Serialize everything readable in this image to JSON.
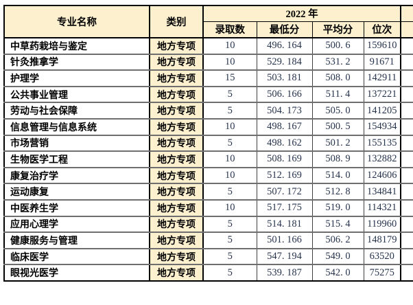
{
  "table": {
    "header": {
      "major_label": "专业名称",
      "category_label": "类别",
      "year_label": "2022 年",
      "sub_labels": [
        "录取数",
        "最低分",
        "平均分",
        "位次"
      ]
    },
    "rows": [
      {
        "major": "中草药栽培与鉴定",
        "category": "地方专项",
        "admit_count": "10",
        "min_score": "496. 164",
        "avg_score": "500. 6",
        "rank": "159610"
      },
      {
        "major": "针灸推拿学",
        "category": "地方专项",
        "admit_count": "10",
        "min_score": "529. 184",
        "avg_score": "531. 2",
        "rank": "91671"
      },
      {
        "major": "护理学",
        "category": "地方专项",
        "admit_count": "15",
        "min_score": "503. 181",
        "avg_score": "508. 0",
        "rank": "142911"
      },
      {
        "major": "公共事业管理",
        "category": "地方专项",
        "admit_count": "5",
        "min_score": "506. 166",
        "avg_score": "511. 4",
        "rank": "137221"
      },
      {
        "major": "劳动与社会保障",
        "category": "地方专项",
        "admit_count": "5",
        "min_score": "504. 173",
        "avg_score": "505. 0",
        "rank": "141205"
      },
      {
        "major": "信息管理与信息系统",
        "category": "地方专项",
        "admit_count": "10",
        "min_score": "498. 167",
        "avg_score": "500. 5",
        "rank": "154934"
      },
      {
        "major": "市场营销",
        "category": "地方专项",
        "admit_count": "5",
        "min_score": "498. 162",
        "avg_score": "501. 2",
        "rank": "155135"
      },
      {
        "major": "生物医学工程",
        "category": "地方专项",
        "admit_count": "10",
        "min_score": "508. 169",
        "avg_score": "508. 9",
        "rank": "132882"
      },
      {
        "major": "康复治疗学",
        "category": "地方专项",
        "admit_count": "10",
        "min_score": "512. 169",
        "avg_score": "514. 0",
        "rank": "124606"
      },
      {
        "major": "运动康复",
        "category": "地方专项",
        "admit_count": "5",
        "min_score": "507. 172",
        "avg_score": "512. 8",
        "rank": "134841"
      },
      {
        "major": "中医养生学",
        "category": "地方专项",
        "admit_count": "10",
        "min_score": "517. 175",
        "avg_score": "519. 0",
        "rank": "114321"
      },
      {
        "major": "应用心理学",
        "category": "地方专项",
        "admit_count": "5",
        "min_score": "514. 181",
        "avg_score": "515. 4",
        "rank": "119960"
      },
      {
        "major": "健康服务与管理",
        "category": "地方专项",
        "admit_count": "5",
        "min_score": "501. 166",
        "avg_score": "506. 2",
        "rank": "148179"
      },
      {
        "major": "临床医学",
        "category": "地方专项",
        "admit_count": "5",
        "min_score": "547. 194",
        "avg_score": "549. 0",
        "rank": "63520"
      },
      {
        "major": "眼视光医学",
        "category": "地方专项",
        "admit_count": "5",
        "min_score": "539. 187",
        "avg_score": "542. 0",
        "rank": "75275"
      }
    ],
    "colors": {
      "header_bg": "#FCF0CF",
      "category_bg": "#FCF0CF",
      "number_text": "#26334D",
      "outer_border": "#000000",
      "row_line": "#6E6E6E"
    }
  }
}
